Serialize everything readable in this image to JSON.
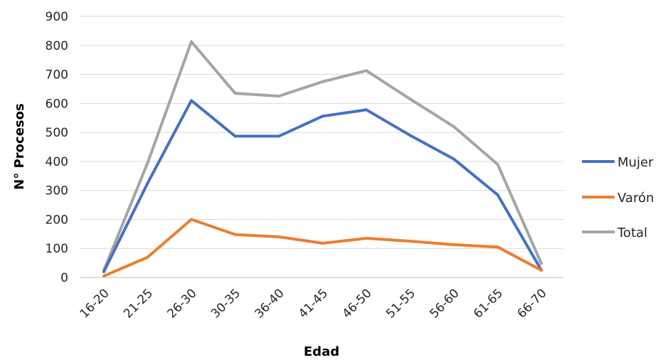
{
  "chart_data": {
    "type": "line",
    "title": "",
    "xlabel": "Edad",
    "ylabel": "N° Procesos",
    "ylim": [
      0,
      900
    ],
    "yticks": [
      0,
      100,
      200,
      300,
      400,
      500,
      600,
      700,
      800,
      900
    ],
    "grid": true,
    "legend_position": "right",
    "categories": [
      "16-20",
      "21-25",
      "26-30",
      "30-35",
      "36-40",
      "41-45",
      "46-50",
      "51-55",
      "56-60",
      "61-65",
      "66-70"
    ],
    "series": [
      {
        "name": "Mujer",
        "color": "#4472c4",
        "values": [
          20,
          325,
          610,
          487,
          487,
          556,
          578,
          490,
          408,
          285,
          25
        ]
      },
      {
        "name": "Varón",
        "color": "#ed7d31",
        "values": [
          5,
          70,
          200,
          148,
          140,
          118,
          135,
          125,
          113,
          105,
          25
        ]
      },
      {
        "name": "Total",
        "color": "#a5a5a5",
        "values": [
          25,
          395,
          813,
          635,
          625,
          675,
          713,
          615,
          520,
          390,
          48
        ]
      }
    ]
  }
}
